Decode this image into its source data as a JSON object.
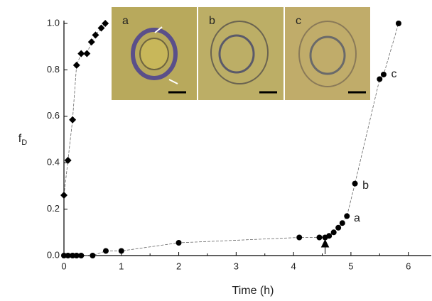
{
  "chart_data": {
    "type": "scatter",
    "xlabel": "Time (h)",
    "ylabel": "f",
    "ylabel_sub": "D",
    "xlim": [
      0,
      6.4
    ],
    "ylim": [
      0,
      1.0
    ],
    "xticks": [
      0,
      1,
      2,
      3,
      4,
      5,
      6
    ],
    "yticks": [
      {
        "value": 0,
        "label": "0.0"
      },
      {
        "value": 0.2,
        "label": "0.2"
      },
      {
        "value": 0.4,
        "label": "0.4"
      },
      {
        "value": 0.6,
        "label": "0.6"
      },
      {
        "value": 0.8,
        "label": "0.8"
      },
      {
        "value": 1.0,
        "label": "1.0"
      }
    ],
    "series": [
      {
        "marker": "diamond",
        "color": "#000000",
        "x": [
          0,
          0.07,
          0.15,
          0.22,
          0.3,
          0.4,
          0.48,
          0.55,
          0.65,
          0.72
        ],
        "values": [
          0.26,
          0.41,
          0.585,
          0.82,
          0.87,
          0.87,
          0.92,
          0.95,
          0.98,
          1.0
        ]
      },
      {
        "marker": "circle",
        "color": "#000000",
        "x": [
          0,
          0.07,
          0.15,
          0.22,
          0.3,
          0.5,
          0.73,
          1.0,
          2.0,
          4.1,
          4.45,
          4.55,
          4.62,
          4.7,
          4.78,
          4.85,
          4.93,
          5.07,
          5.5,
          5.57,
          5.83
        ],
        "values": [
          0,
          0,
          0,
          0,
          0,
          0,
          0.02,
          0.02,
          0.055,
          0.078,
          0.078,
          0.078,
          0.085,
          0.1,
          0.12,
          0.14,
          0.17,
          0.31,
          0.76,
          0.78,
          1.0
        ]
      }
    ],
    "annotations": [
      {
        "text": "a",
        "x": 5.05,
        "y": 0.16
      },
      {
        "text": "b",
        "x": 5.2,
        "y": 0.3
      },
      {
        "text": "c",
        "x": 5.7,
        "y": 0.78
      }
    ],
    "arrow_x": 4.55,
    "inset_labels": [
      "a",
      "b",
      "c"
    ]
  }
}
